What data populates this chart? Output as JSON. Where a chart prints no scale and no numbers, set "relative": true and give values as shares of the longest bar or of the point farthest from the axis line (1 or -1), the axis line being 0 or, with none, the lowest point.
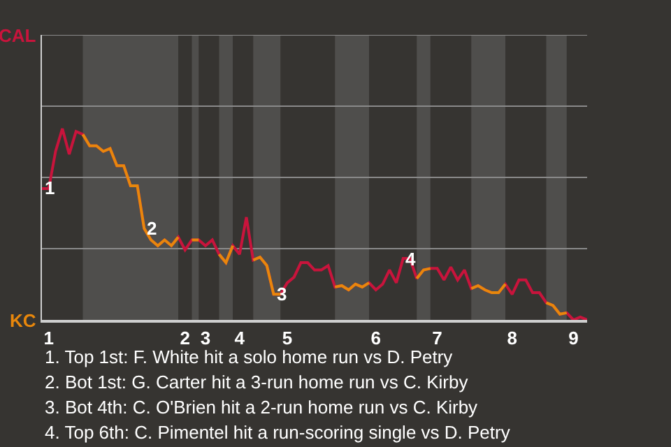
{
  "chart_data": {
    "type": "line",
    "relative": true,
    "categories": [
      null,
      "1",
      null,
      null,
      null,
      null,
      null,
      null,
      null,
      null,
      null,
      null,
      null,
      null,
      null,
      null,
      null,
      null,
      null,
      null,
      null,
      "2",
      null,
      null,
      "3",
      null,
      null,
      null,
      null,
      "4",
      null,
      null,
      null,
      null,
      null,
      null,
      "5",
      null,
      null,
      null,
      null,
      null,
      null,
      null,
      null,
      null,
      null,
      null,
      null,
      "6",
      null,
      null,
      null,
      null,
      null,
      null,
      null,
      null,
      "7",
      null,
      null,
      null,
      null,
      null,
      null,
      null,
      null,
      null,
      null,
      "8",
      null,
      null,
      null,
      null,
      null,
      null,
      null,
      null,
      "9",
      null,
      null
    ],
    "series": [
      {
        "color": "#c8143c",
        "values": [
          0.687,
          0.687,
          0.881,
          1,
          0.866,
          0.985,
          0.97,
          0.91,
          0.91,
          0.881,
          0.896,
          0.806,
          0.806,
          0.701,
          0.701,
          0.478,
          0.418,
          0.388,
          0.418,
          0.388,
          0.433,
          0.366,
          0.418,
          0.418,
          0.388,
          0.418,
          0.343,
          0.299,
          0.388,
          0.343,
          0.537,
          0.313,
          0.328,
          0.284,
          0.134,
          0.134,
          0.194,
          0.224,
          0.299,
          0.299,
          0.261,
          0.261,
          0.284,
          0.172,
          0.179,
          0.157,
          0.187,
          0.172,
          0.194,
          0.157,
          0.187,
          0.261,
          0.194,
          0.321,
          0.321,
          0.216,
          0.261,
          0.269,
          0.269,
          0.209,
          0.276,
          0.209,
          0.261,
          0.164,
          0.179,
          0.157,
          0.142,
          0.142,
          0.187,
          0.134,
          0.209,
          0.209,
          0.142,
          0.142,
          0.09,
          0.075,
          0.03,
          0.037,
          0,
          0.015,
          0
        ]
      },
      {
        "color": "#e8870c",
        "values": [
          null,
          null,
          null,
          null,
          null,
          null,
          0.97,
          0.91,
          0.91,
          0.881,
          0.896,
          0.806,
          0.806,
          0.701,
          0.701,
          0.478,
          0.418,
          0.388,
          0.418,
          0.388,
          0.433,
          null,
          0.418,
          0.418,
          null,
          null,
          0.343,
          0.299,
          0.388,
          null,
          null,
          0.313,
          0.328,
          0.284,
          0.134,
          0.134,
          null,
          null,
          null,
          null,
          null,
          null,
          null,
          0.172,
          0.179,
          0.157,
          0.187,
          0.172,
          0.194,
          null,
          null,
          null,
          null,
          null,
          null,
          0.216,
          0.261,
          0.269,
          null,
          null,
          null,
          null,
          null,
          0.164,
          0.179,
          0.157,
          0.142,
          0.142,
          0.187,
          null,
          null,
          null,
          null,
          null,
          0.09,
          0.075,
          0.03,
          0.037,
          null,
          null,
          null
        ]
      }
    ],
    "marker": "none",
    "line_style": "solid",
    "ref_lines": [
      {
        "axis": "y",
        "value": 0.3725,
        "color": "#8a8a8a"
      },
      {
        "axis": "y",
        "value": 0.745,
        "color": "#8a8a8a"
      },
      {
        "axis": "y",
        "value": 1.1175,
        "color": "#8a8a8a"
      },
      {
        "axis": "y",
        "value": 1.49,
        "color": "#8a8a8a"
      }
    ],
    "annotations": [
      {
        "text": "CAL"
      },
      {
        "text": "KC"
      },
      {
        "text": "1",
        "y": 0.687
      },
      {
        "text": "2",
        "y": 0.478
      },
      {
        "text": "3",
        "y": 0.134
      },
      {
        "text": "4",
        "y": 0.321
      },
      "1. Top 1st: F. White hit a solo home run vs D. Petry",
      "2. Bot 1st: G. Carter hit a 3-run home run vs C. Kirby",
      "3. Bot 4th: C. O'Brien hit a 2-run home run vs C. Kirby",
      "4. Top 6th: C. Pimentel hit a run-scoring single vs D. Petry"
    ]
  }
}
